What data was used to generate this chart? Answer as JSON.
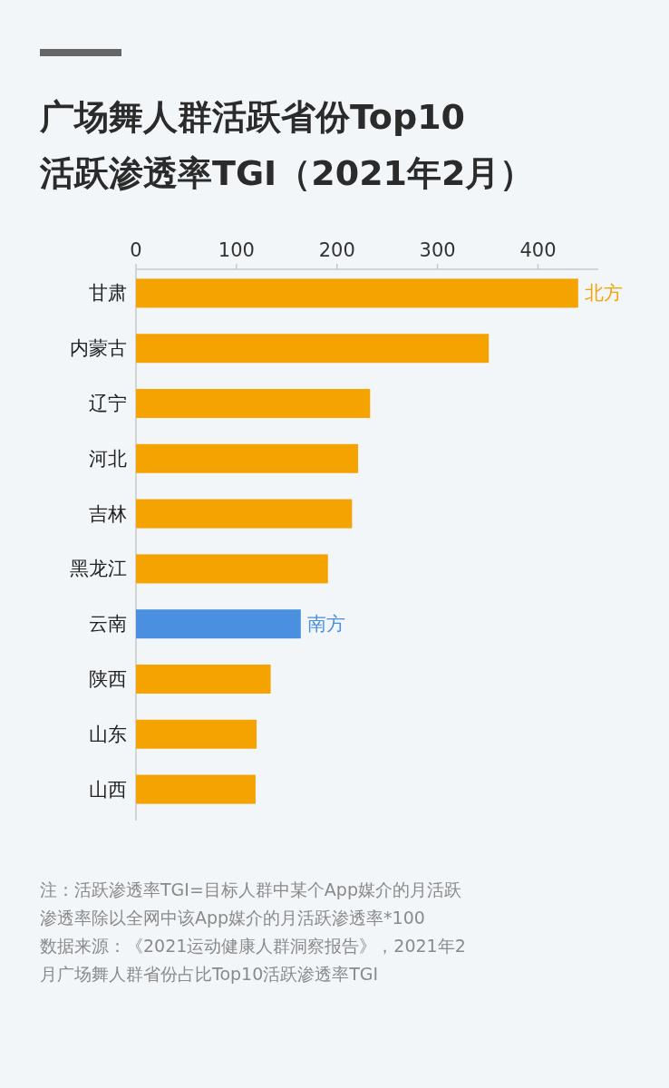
{
  "chart_data": {
    "type": "bar",
    "orientation": "horizontal",
    "title": "广场舞人群活跃省份Top10\n活跃渗透率TGI（2021年2月）",
    "categories": [
      "甘肃",
      "内蒙古",
      "辽宁",
      "河北",
      "吉林",
      "黑龙江",
      "云南",
      "陕西",
      "山东",
      "山西"
    ],
    "values": [
      440,
      351,
      233,
      221,
      215,
      191,
      164,
      134,
      120,
      119
    ],
    "colors": [
      "#f5a300",
      "#f5a300",
      "#f5a300",
      "#f5a300",
      "#f5a300",
      "#f5a300",
      "#4a8fe0",
      "#f5a300",
      "#f5a300",
      "#f5a300"
    ],
    "xlim": [
      0,
      460
    ],
    "xticks": [
      0,
      100,
      200,
      300,
      400
    ],
    "grid": false,
    "annotations": [
      {
        "text": "北方",
        "x": 440,
        "y": "甘肃"
      },
      {
        "text": "南方",
        "x": 164,
        "y": "云南"
      },
      "注：活跃渗透率TGI=目标人群中某个App媒介的月活跃渗透率除以全网中该App媒介的月活跃渗透率*100",
      "数据来源：《2021运动健康人群洞察报告》，2021年2月广场舞人群省份占比Top10活跃渗透率TGI"
    ]
  }
}
